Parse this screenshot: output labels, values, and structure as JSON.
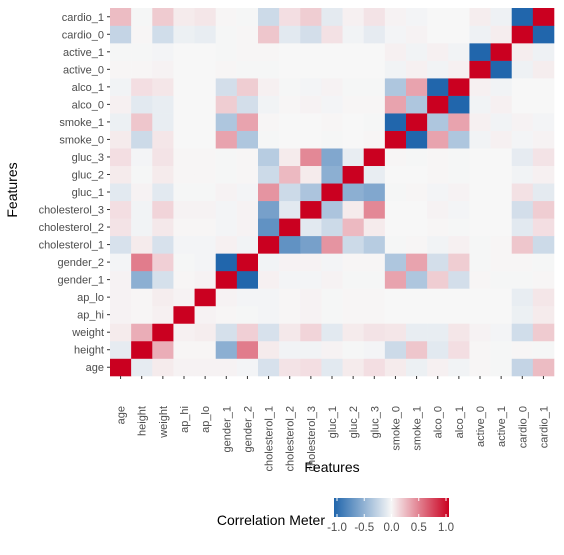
{
  "chart_data": {
    "type": "heatmap",
    "xlabel": "Features",
    "ylabel": "Features",
    "features": [
      "age",
      "height",
      "weight",
      "ap_hi",
      "ap_lo",
      "gender_1",
      "gender_2",
      "cholesterol_1",
      "cholesterol_2",
      "cholesterol_3",
      "gluc_1",
      "gluc_2",
      "gluc_3",
      "smoke_0",
      "smoke_1",
      "alco_0",
      "alco_1",
      "active_0",
      "active_1",
      "cardio_0",
      "cardio_1"
    ],
    "matrix": [
      [
        1.0,
        -0.08,
        0.05,
        0.02,
        0.02,
        0.02,
        -0.02,
        -0.15,
        0.08,
        0.1,
        -0.1,
        0.05,
        0.1,
        0.05,
        -0.05,
        0.03,
        -0.03,
        0.01,
        -0.01,
        -0.24,
        0.24
      ],
      [
        -0.08,
        1.0,
        0.3,
        0.01,
        0.01,
        -0.5,
        0.5,
        0.05,
        -0.03,
        -0.03,
        0.02,
        -0.01,
        -0.02,
        -0.2,
        0.2,
        -0.1,
        0.1,
        0.01,
        -0.01,
        0.01,
        -0.01
      ],
      [
        0.05,
        0.3,
        1.0,
        0.03,
        0.04,
        -0.16,
        0.16,
        -0.15,
        0.06,
        0.14,
        -0.1,
        0.05,
        0.08,
        0.07,
        -0.07,
        -0.07,
        0.07,
        0.02,
        -0.02,
        -0.18,
        0.18
      ],
      [
        0.02,
        0.01,
        0.03,
        1.0,
        0.02,
        0.01,
        -0.01,
        -0.02,
        0.01,
        0.02,
        -0.01,
        0.01,
        0.01,
        0.0,
        0.0,
        0.0,
        0.0,
        0.0,
        0.0,
        -0.05,
        0.05
      ],
      [
        0.02,
        0.01,
        0.04,
        0.02,
        1.0,
        0.02,
        -0.02,
        -0.02,
        0.01,
        0.02,
        -0.01,
        0.01,
        0.01,
        0.0,
        0.0,
        0.0,
        0.0,
        0.0,
        0.0,
        -0.07,
        0.07
      ],
      [
        0.02,
        -0.5,
        -0.16,
        0.01,
        0.02,
        1.0,
        -1.0,
        0.03,
        -0.02,
        -0.02,
        0.02,
        -0.01,
        -0.01,
        0.34,
        -0.34,
        0.17,
        -0.17,
        0.01,
        -0.01,
        -0.01,
        0.01
      ],
      [
        -0.02,
        0.5,
        0.16,
        -0.01,
        -0.02,
        -1.0,
        1.0,
        -0.03,
        0.02,
        0.02,
        -0.02,
        0.01,
        0.01,
        -0.34,
        0.34,
        -0.17,
        0.17,
        -0.01,
        0.01,
        0.01,
        -0.01
      ],
      [
        -0.15,
        0.05,
        -0.15,
        -0.02,
        -0.02,
        0.03,
        -0.03,
        1.0,
        -0.7,
        -0.6,
        0.4,
        -0.2,
        -0.3,
        -0.01,
        0.01,
        -0.03,
        0.03,
        -0.01,
        0.01,
        0.2,
        -0.2
      ],
      [
        0.08,
        -0.03,
        0.06,
        0.01,
        0.01,
        -0.02,
        0.02,
        -0.7,
        1.0,
        -0.1,
        -0.2,
        0.25,
        0.05,
        0.0,
        0.0,
        0.01,
        -0.01,
        0.0,
        0.0,
        -0.1,
        0.1
      ],
      [
        0.1,
        -0.03,
        0.14,
        0.02,
        0.02,
        -0.02,
        0.02,
        -0.6,
        -0.1,
        1.0,
        -0.35,
        0.05,
        0.45,
        0.0,
        0.0,
        0.02,
        -0.02,
        0.0,
        0.0,
        -0.17,
        0.17
      ],
      [
        -0.1,
        0.02,
        -0.1,
        -0.01,
        -0.01,
        0.02,
        -0.02,
        0.4,
        -0.2,
        -0.35,
        1.0,
        -0.5,
        -0.55,
        -0.01,
        0.01,
        -0.02,
        0.02,
        0.0,
        0.0,
        0.09,
        -0.09
      ],
      [
        0.05,
        -0.01,
        0.05,
        0.01,
        0.01,
        -0.01,
        0.01,
        -0.2,
        0.25,
        0.05,
        -0.5,
        1.0,
        -0.07,
        0.0,
        0.0,
        0.01,
        -0.01,
        0.0,
        0.0,
        -0.03,
        0.03
      ],
      [
        0.1,
        -0.02,
        0.08,
        0.01,
        0.01,
        -0.01,
        0.01,
        -0.3,
        0.05,
        0.45,
        -0.55,
        -0.07,
        1.0,
        0.01,
        -0.01,
        0.01,
        -0.01,
        0.0,
        0.0,
        -0.08,
        0.08
      ],
      [
        0.05,
        -0.2,
        0.07,
        0.0,
        0.0,
        0.34,
        -0.34,
        -0.01,
        0.0,
        0.0,
        -0.01,
        0.0,
        0.01,
        1.0,
        -1.0,
        0.34,
        -0.34,
        -0.03,
        0.03,
        -0.02,
        0.02
      ],
      [
        -0.05,
        0.2,
        -0.07,
        0.0,
        0.0,
        -0.34,
        0.34,
        0.01,
        0.0,
        0.0,
        0.01,
        0.0,
        -0.01,
        -1.0,
        1.0,
        -0.34,
        0.34,
        0.03,
        -0.03,
        0.02,
        -0.02
      ],
      [
        0.03,
        -0.1,
        -0.07,
        0.0,
        0.0,
        0.17,
        -0.17,
        -0.03,
        0.01,
        0.02,
        -0.02,
        0.01,
        0.01,
        0.34,
        -0.34,
        1.0,
        -1.0,
        -0.03,
        0.03,
        0.0,
        0.0
      ],
      [
        -0.03,
        0.1,
        0.07,
        0.0,
        0.0,
        -0.17,
        0.17,
        0.03,
        -0.01,
        -0.02,
        0.02,
        -0.01,
        -0.01,
        -0.34,
        0.34,
        -1.0,
        1.0,
        0.03,
        -0.03,
        0.0,
        0.0
      ],
      [
        0.01,
        0.01,
        0.02,
        0.0,
        0.0,
        0.01,
        -0.01,
        -0.01,
        0.0,
        0.0,
        0.0,
        0.0,
        0.0,
        -0.03,
        0.03,
        -0.03,
        0.03,
        1.0,
        -1.0,
        -0.04,
        0.04
      ],
      [
        -0.01,
        -0.01,
        -0.02,
        0.0,
        0.0,
        -0.01,
        0.01,
        0.01,
        0.0,
        0.0,
        0.0,
        0.0,
        0.0,
        0.03,
        -0.03,
        0.03,
        -0.03,
        -1.0,
        1.0,
        0.04,
        -0.04
      ],
      [
        -0.24,
        0.01,
        -0.18,
        -0.05,
        -0.07,
        -0.01,
        0.01,
        0.2,
        -0.1,
        -0.17,
        0.09,
        -0.03,
        -0.08,
        -0.02,
        0.02,
        0.0,
        0.0,
        -0.04,
        0.04,
        1.0,
        -1.0
      ],
      [
        0.24,
        -0.01,
        0.18,
        0.05,
        0.07,
        0.01,
        -0.01,
        -0.2,
        0.1,
        0.17,
        -0.09,
        0.03,
        0.08,
        0.02,
        -0.02,
        0.0,
        0.0,
        0.04,
        -0.04,
        -1.0,
        1.0
      ]
    ],
    "color_scale": {
      "min": -1.0,
      "max": 1.0,
      "low_color": "#2166ac",
      "mid_color": "#f7f7f7",
      "high_color": "#ca0020"
    },
    "legend": {
      "title": "Correlation Meter",
      "position": "bottom",
      "ticks": [
        "-1.0",
        "-0.5",
        "0.0",
        "0.5",
        "1.0"
      ]
    },
    "grid": true
  }
}
